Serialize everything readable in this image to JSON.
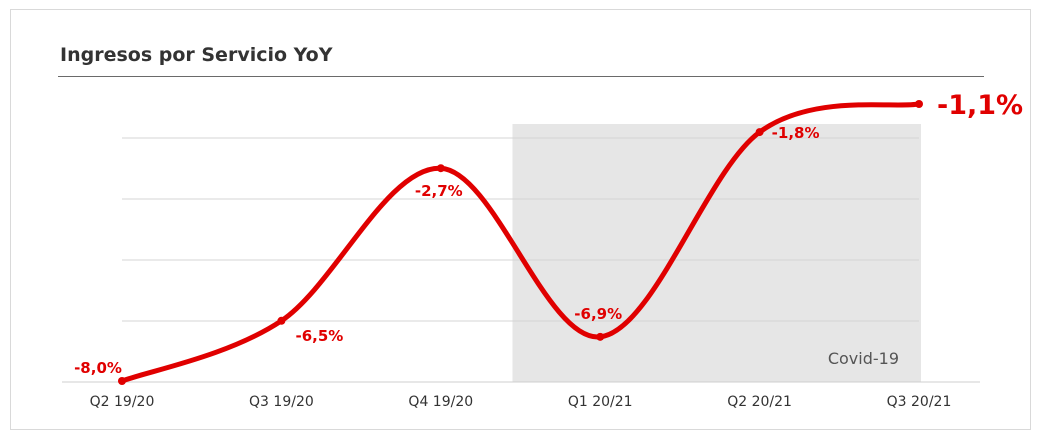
{
  "colors": {
    "line": "#e00000",
    "grid": "#d4d4d4",
    "shade": "#e6e6e6"
  },
  "chart_data": {
    "type": "line",
    "title": "Ingresos por Servicio YoY",
    "categories": [
      "Q2 19/20",
      "Q3 19/20",
      "Q4 19/20",
      "Q1 20/21",
      "Q2 20/21",
      "Q3 20/21"
    ],
    "series": [
      {
        "values": [
          -8.0,
          -6.5,
          -2.7,
          -6.9,
          -1.8,
          -1.1
        ]
      }
    ],
    "value_labels": [
      "-8,0%",
      "-6,5%",
      "-2,7%",
      "-6,9%",
      "-1,8%",
      "-1,1%"
    ],
    "ylim": [
      -8.0,
      -1.1
    ],
    "grid": true,
    "smooth": true,
    "annotation": {
      "label": "Covid-19",
      "from_index": 2.5,
      "to_index": 5
    }
  }
}
